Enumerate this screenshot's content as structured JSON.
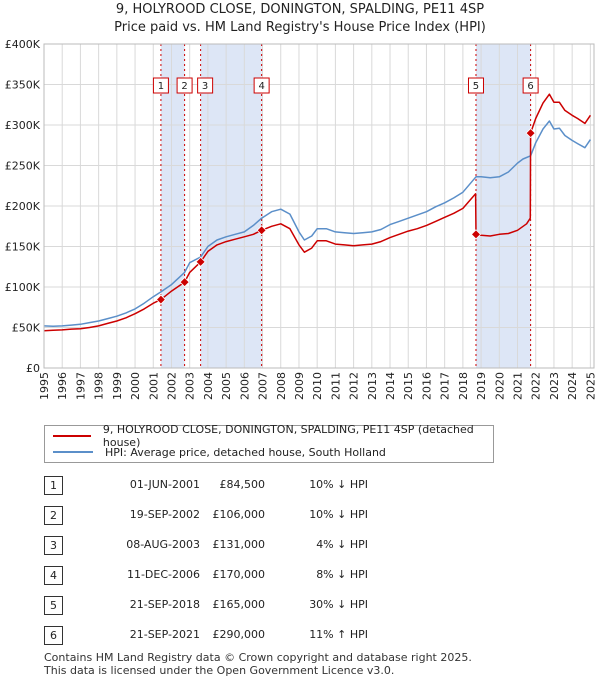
{
  "title_line1": "9, HOLYROOD CLOSE, DONINGTON, SPALDING, PE11 4SP",
  "title_line2": "Price paid vs. HM Land Registry's House Price Index (HPI)",
  "colors": {
    "property": "#cc0000",
    "hpi": "#5b8fc9",
    "shade": "#dde6f6",
    "grid": "#d9d9d9"
  },
  "legend": {
    "property_label": "9, HOLYROOD CLOSE, DONINGTON, SPALDING, PE11 4SP (detached house)",
    "hpi_label": "HPI: Average price, detached house, South Holland"
  },
  "events": [
    {
      "num": "1",
      "date": "01-JUN-2001",
      "price": "£84,500",
      "hpi": "10% ↓ HPI"
    },
    {
      "num": "2",
      "date": "19-SEP-2002",
      "price": "£106,000",
      "hpi": "10% ↓ HPI"
    },
    {
      "num": "3",
      "date": "08-AUG-2003",
      "price": "£131,000",
      "hpi": "4% ↓ HPI"
    },
    {
      "num": "4",
      "date": "11-DEC-2006",
      "price": "£170,000",
      "hpi": "8% ↓ HPI"
    },
    {
      "num": "5",
      "date": "21-SEP-2018",
      "price": "£165,000",
      "hpi": "30% ↓ HPI"
    },
    {
      "num": "6",
      "date": "21-SEP-2021",
      "price": "£290,000",
      "hpi": "11% ↑ HPI"
    }
  ],
  "footer_line1": "Contains HM Land Registry data © Crown copyright and database right 2025.",
  "footer_line2": "This data is licensed under the Open Government Licence v3.0.",
  "chart_data": {
    "type": "line",
    "title": "9, HOLYROOD CLOSE, DONINGTON, SPALDING, PE11 4SP",
    "subtitle": "Price paid vs. HM Land Registry's House Price Index (HPI)",
    "xlim": [
      1995,
      2025.2
    ],
    "ylim": [
      0,
      400000
    ],
    "x_ticks": [
      1995,
      1996,
      1997,
      1998,
      1999,
      2000,
      2001,
      2002,
      2003,
      2004,
      2005,
      2006,
      2007,
      2008,
      2009,
      2010,
      2011,
      2012,
      2013,
      2014,
      2015,
      2016,
      2017,
      2018,
      2019,
      2020,
      2021,
      2022,
      2023,
      2024,
      2025
    ],
    "y_ticks": [
      {
        "value": 0,
        "label": "£0"
      },
      {
        "value": 50000,
        "label": "£50K"
      },
      {
        "value": 100000,
        "label": "£100K"
      },
      {
        "value": 150000,
        "label": "£150K"
      },
      {
        "value": 200000,
        "label": "£200K"
      },
      {
        "value": 250000,
        "label": "£250K"
      },
      {
        "value": 300000,
        "label": "£300K"
      },
      {
        "value": 350000,
        "label": "£350K"
      },
      {
        "value": 400000,
        "label": "£400K"
      }
    ],
    "grid": true,
    "shaded_ranges": [
      [
        2001.42,
        2002.72
      ],
      [
        2003.6,
        2006.95
      ],
      [
        2018.72,
        2021.72
      ]
    ],
    "series": [
      {
        "name": "HPI: Average price, detached house, South Holland",
        "x": [
          1995,
          1995.5,
          1996,
          1996.5,
          1997,
          1997.5,
          1998,
          1998.5,
          1999,
          1999.5,
          2000,
          2000.5,
          2001,
          2001.42,
          2002,
          2002.72,
          2003,
          2003.6,
          2004,
          2004.5,
          2005,
          2005.5,
          2006,
          2006.5,
          2006.95,
          2007.5,
          2008,
          2008.5,
          2009,
          2009.3,
          2009.7,
          2010,
          2010.5,
          2011,
          2011.5,
          2012,
          2012.5,
          2013,
          2013.5,
          2014,
          2014.5,
          2015,
          2015.5,
          2016,
          2016.5,
          2017,
          2017.5,
          2018,
          2018.72,
          2019,
          2019.5,
          2020,
          2020.5,
          2021,
          2021.3,
          2021.72,
          2022,
          2022.4,
          2022.75,
          2023,
          2023.3,
          2023.6,
          2024,
          2024.3,
          2024.7,
          2025
        ],
        "values": [
          52000,
          51500,
          52000,
          53000,
          54000,
          56000,
          58000,
          61000,
          64000,
          68000,
          73000,
          80000,
          88000,
          94000,
          103000,
          118000,
          130000,
          137000,
          150000,
          158000,
          162000,
          165000,
          168000,
          176000,
          185000,
          193000,
          196000,
          190000,
          168000,
          158000,
          163000,
          172000,
          172000,
          168000,
          167000,
          166000,
          167000,
          168000,
          171000,
          177000,
          181000,
          185000,
          189000,
          193000,
          199000,
          204000,
          210000,
          217000,
          236000,
          236000,
          235000,
          236000,
          242000,
          253000,
          258000,
          262000,
          278000,
          295000,
          305000,
          295000,
          296000,
          287000,
          281000,
          277000,
          272000,
          282000
        ]
      },
      {
        "name": "9, HOLYROOD CLOSE, DONINGTON, SPALDING, PE11 4SP (detached house)",
        "x": [
          1995,
          1995.5,
          1996,
          1996.5,
          1997,
          1997.5,
          1998,
          1998.5,
          1999,
          1999.5,
          2000,
          2000.5,
          2001,
          2001.42,
          2002,
          2002.72,
          2003,
          2003.6,
          2004,
          2004.5,
          2005,
          2005.5,
          2006,
          2006.5,
          2006.95,
          2007.5,
          2008,
          2008.5,
          2009,
          2009.3,
          2009.7,
          2010,
          2010.5,
          2011,
          2011.5,
          2012,
          2012.5,
          2013,
          2013.5,
          2014,
          2014.5,
          2015,
          2015.5,
          2016,
          2016.5,
          2017,
          2017.5,
          2018,
          2018.7,
          2018.72,
          2019,
          2019.5,
          2020,
          2020.5,
          2021,
          2021.5,
          2021.7,
          2021.72,
          2022,
          2022.4,
          2022.75,
          2023,
          2023.3,
          2023.6,
          2024,
          2024.3,
          2024.7,
          2025
        ],
        "values": [
          46000,
          46500,
          47000,
          48000,
          48500,
          50000,
          52000,
          55000,
          58000,
          62000,
          67000,
          73000,
          80000,
          84500,
          95000,
          106000,
          118000,
          131000,
          144000,
          152000,
          156000,
          159000,
          162000,
          165000,
          170000,
          175000,
          178000,
          172000,
          152000,
          143000,
          148000,
          157000,
          157000,
          153000,
          152000,
          151000,
          152000,
          153000,
          156000,
          161000,
          165000,
          169000,
          172000,
          176000,
          181000,
          186000,
          191000,
          197000,
          215000,
          165000,
          164000,
          163000,
          165000,
          166000,
          170000,
          178000,
          185000,
          290000,
          308000,
          327000,
          338000,
          328000,
          328000,
          318000,
          312000,
          308000,
          302000,
          312000
        ]
      }
    ],
    "events": [
      {
        "label": "1",
        "x": 2001.42,
        "value": 84500
      },
      {
        "label": "2",
        "x": 2002.72,
        "value": 106000
      },
      {
        "label": "3",
        "x": 2003.6,
        "value": 131000
      },
      {
        "label": "4",
        "x": 2006.95,
        "value": 170000
      },
      {
        "label": "5",
        "x": 2018.72,
        "value": 165000
      },
      {
        "label": "6",
        "x": 2021.72,
        "value": 290000
      }
    ]
  }
}
